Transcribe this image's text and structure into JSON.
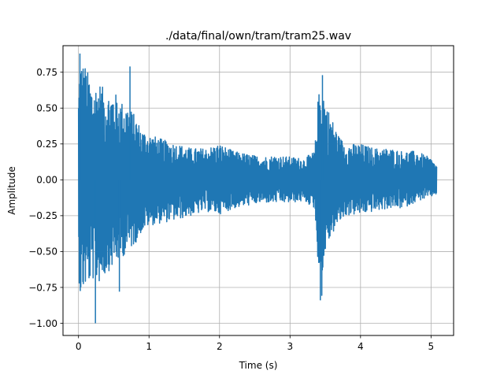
{
  "chart_data": {
    "type": "line",
    "title": "./data/final/own/tram/tram25.wav",
    "xlabel": "Time (s)",
    "ylabel": "Amplitude",
    "xlim": [
      -0.22,
      5.32
    ],
    "ylim": [
      -1.085,
      0.935
    ],
    "xticks": [
      0,
      1,
      2,
      3,
      4,
      5
    ],
    "xtick_labels": [
      "0",
      "1",
      "2",
      "3",
      "4",
      "5"
    ],
    "yticks": [
      -1.0,
      -0.75,
      -0.5,
      -0.25,
      0.0,
      0.25,
      0.5,
      0.75
    ],
    "ytick_labels": [
      "−1.00",
      "−0.75",
      "−0.50",
      "−0.25",
      "0.00",
      "0.25",
      "0.50",
      "0.75"
    ],
    "grid": true,
    "series": [
      {
        "color": "#1f77b4",
        "envelope": {
          "time_s": [
            0.0,
            0.02,
            0.05,
            0.1,
            0.2,
            0.3,
            0.4,
            0.5,
            0.6,
            0.7,
            0.8,
            0.9,
            1.0,
            1.2,
            1.4,
            1.6,
            1.8,
            2.0,
            2.2,
            2.4,
            2.6,
            2.8,
            3.0,
            3.2,
            3.35,
            3.4,
            3.45,
            3.5,
            3.6,
            3.7,
            3.8,
            4.0,
            4.2,
            4.4,
            4.6,
            4.8,
            5.0,
            5.08
          ],
          "upper": [
            0.6,
            0.86,
            0.83,
            0.8,
            0.65,
            0.68,
            0.6,
            0.62,
            0.55,
            0.52,
            0.45,
            0.35,
            0.32,
            0.28,
            0.25,
            0.22,
            0.22,
            0.25,
            0.2,
            0.18,
            0.16,
            0.17,
            0.16,
            0.15,
            0.2,
            0.58,
            0.72,
            0.55,
            0.42,
            0.3,
            0.25,
            0.25,
            0.22,
            0.22,
            0.2,
            0.2,
            0.15,
            0.1
          ],
          "lower": [
            -0.6,
            -0.82,
            -0.8,
            -0.75,
            -0.7,
            -0.72,
            -0.65,
            -0.6,
            -0.55,
            -0.5,
            -0.45,
            -0.36,
            -0.32,
            -0.3,
            -0.28,
            -0.25,
            -0.22,
            -0.24,
            -0.2,
            -0.18,
            -0.16,
            -0.16,
            -0.16,
            -0.15,
            -0.2,
            -0.6,
            -0.82,
            -0.5,
            -0.38,
            -0.3,
            -0.25,
            -0.24,
            -0.22,
            -0.2,
            -0.2,
            -0.15,
            -0.12,
            -0.1
          ]
        },
        "spikes": [
          {
            "time_s": 0.24,
            "value": -1.0
          },
          {
            "time_s": 0.02,
            "value": 0.88
          },
          {
            "time_s": 0.58,
            "value": -0.78
          },
          {
            "time_s": 0.73,
            "value": 0.79
          },
          {
            "time_s": 3.43,
            "value": -0.84
          },
          {
            "time_s": 3.46,
            "value": 0.73
          }
        ]
      }
    ]
  }
}
